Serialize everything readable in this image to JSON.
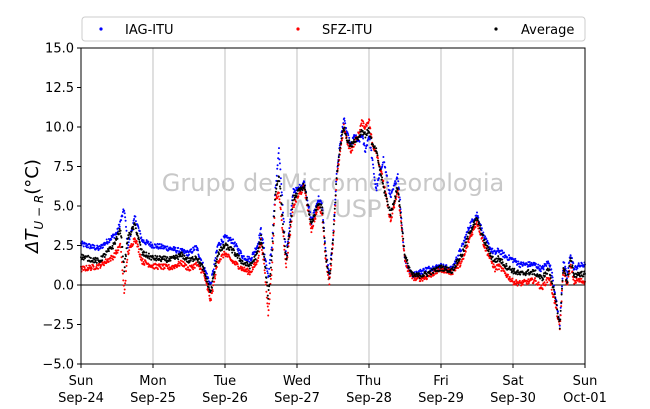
{
  "chart_data": {
    "type": "scatter",
    "title": "",
    "xlabel": "",
    "ylabel": "ΔT_{U−R}(°C)",
    "ylabel_main": "ΔT",
    "ylabel_sub": "U − R",
    "ylabel_unit": "(°C)",
    "xlim": [
      0,
      7
    ],
    "ylim": [
      -5.0,
      15.0
    ],
    "yticks": [
      -5.0,
      -2.5,
      0.0,
      2.5,
      5.0,
      7.5,
      10.0,
      12.5,
      15.0
    ],
    "ytick_labels": [
      "−5.0",
      "−2.5",
      "0.0",
      "2.5",
      "5.0",
      "7.5",
      "10.0",
      "12.5",
      "15.0"
    ],
    "xticks": [
      0,
      1,
      2,
      3,
      4,
      5,
      6,
      7
    ],
    "xtick_labels": [
      {
        "day": "Sun",
        "date": "Sep-24"
      },
      {
        "day": "Mon",
        "date": "Sep-25"
      },
      {
        "day": "Tue",
        "date": "Sep-26"
      },
      {
        "day": "Wed",
        "date": "Sep-27"
      },
      {
        "day": "Thu",
        "date": "Sep-28"
      },
      {
        "day": "Fri",
        "date": "Sep-29"
      },
      {
        "day": "Sat",
        "date": "Sep-30"
      },
      {
        "day": "Sun",
        "date": "Oct-01"
      }
    ],
    "grid": "x-only",
    "zero_line": true,
    "legend_position": "top",
    "watermark": [
      "Grupo de Micrometeorologia",
      "IAG/USP"
    ],
    "series": [
      {
        "name": "IAG-ITU",
        "color": "#0000ff",
        "x": [
          0.0,
          0.25,
          0.5,
          0.6,
          0.65,
          0.75,
          0.85,
          1.0,
          1.25,
          1.5,
          1.6,
          1.8,
          1.9,
          2.0,
          2.1,
          2.25,
          2.35,
          2.45,
          2.5,
          2.55,
          2.6,
          2.65,
          2.7,
          2.75,
          2.85,
          2.95,
          3.0,
          3.1,
          3.2,
          3.3,
          3.35,
          3.4,
          3.45,
          3.5,
          3.55,
          3.6,
          3.65,
          3.7,
          3.75,
          3.8,
          3.85,
          3.9,
          3.95,
          4.0,
          4.1,
          4.2,
          4.3,
          4.4,
          4.5,
          4.55,
          4.6,
          4.7,
          4.8,
          5.0,
          5.15,
          5.3,
          5.4,
          5.5,
          5.6,
          5.7,
          5.75,
          5.8,
          5.9,
          6.0,
          6.1,
          6.2,
          6.3,
          6.4,
          6.5,
          6.55,
          6.6,
          6.65,
          6.7,
          6.75,
          6.8,
          6.85,
          6.9,
          7.0
        ],
        "y": [
          2.6,
          2.3,
          3.3,
          4.8,
          2.5,
          4.3,
          2.8,
          2.5,
          2.3,
          2.0,
          2.4,
          0.0,
          2.5,
          3.0,
          2.8,
          1.8,
          1.6,
          2.5,
          3.5,
          2.0,
          0.5,
          2.5,
          6.0,
          8.5,
          1.8,
          6.0,
          6.0,
          6.5,
          4.0,
          5.5,
          5.0,
          2.0,
          0.6,
          3.0,
          7.0,
          9.0,
          10.5,
          9.5,
          8.8,
          9.5,
          9.0,
          9.5,
          8.5,
          9.5,
          6.0,
          8.0,
          5.5,
          7.0,
          1.5,
          1.0,
          0.6,
          0.8,
          1.0,
          1.2,
          1.0,
          2.5,
          3.8,
          4.5,
          3.0,
          2.2,
          2.0,
          2.2,
          1.8,
          1.6,
          1.3,
          1.3,
          1.3,
          1.0,
          1.5,
          0.5,
          -1.0,
          -2.5,
          1.5,
          0.5,
          2.0,
          1.0,
          1.2,
          1.3
        ]
      },
      {
        "name": "SFZ-ITU",
        "color": "#ff0000",
        "x": [
          0.0,
          0.25,
          0.45,
          0.55,
          0.6,
          0.65,
          0.75,
          0.85,
          1.0,
          1.25,
          1.4,
          1.5,
          1.6,
          1.7,
          1.8,
          1.9,
          2.0,
          2.1,
          2.25,
          2.35,
          2.45,
          2.5,
          2.55,
          2.6,
          2.65,
          2.7,
          2.75,
          2.85,
          2.95,
          3.0,
          3.1,
          3.2,
          3.3,
          3.35,
          3.4,
          3.45,
          3.5,
          3.55,
          3.6,
          3.65,
          3.7,
          3.75,
          3.8,
          3.85,
          3.9,
          3.95,
          4.0,
          4.05,
          4.1,
          4.2,
          4.3,
          4.4,
          4.5,
          4.55,
          4.6,
          4.7,
          4.8,
          5.0,
          5.15,
          5.3,
          5.4,
          5.5,
          5.6,
          5.7,
          5.75,
          5.8,
          5.9,
          6.0,
          6.1,
          6.2,
          6.3,
          6.4,
          6.5,
          6.55,
          6.6,
          6.65,
          6.7,
          6.75,
          6.8,
          6.85,
          6.9,
          7.0
        ],
        "y": [
          1.0,
          1.2,
          1.8,
          2.5,
          -0.5,
          2.0,
          3.0,
          1.5,
          1.2,
          1.1,
          1.4,
          1.0,
          1.3,
          0.8,
          -1.0,
          1.5,
          2.0,
          1.5,
          1.0,
          0.8,
          1.5,
          2.8,
          1.0,
          -1.8,
          1.0,
          5.5,
          5.8,
          1.2,
          5.0,
          5.5,
          6.2,
          3.5,
          5.0,
          4.5,
          1.5,
          0.2,
          2.5,
          6.5,
          8.5,
          10.0,
          9.0,
          8.5,
          9.0,
          9.5,
          10.3,
          10.0,
          10.5,
          8.8,
          8.5,
          6.5,
          4.0,
          6.0,
          1.5,
          0.8,
          0.5,
          0.4,
          0.5,
          1.0,
          0.8,
          1.5,
          3.0,
          4.0,
          2.5,
          1.5,
          1.0,
          1.2,
          0.7,
          0.2,
          0.1,
          0.2,
          0.3,
          -0.2,
          0.5,
          -0.5,
          -1.5,
          -2.8,
          1.0,
          0.0,
          1.2,
          0.2,
          0.3,
          0.2
        ]
      },
      {
        "name": "Average",
        "color": "#000000",
        "x": [
          0.0,
          0.25,
          0.45,
          0.55,
          0.6,
          0.65,
          0.75,
          0.85,
          1.0,
          1.25,
          1.4,
          1.5,
          1.6,
          1.7,
          1.8,
          1.9,
          2.0,
          2.1,
          2.25,
          2.35,
          2.45,
          2.5,
          2.55,
          2.6,
          2.65,
          2.7,
          2.75,
          2.85,
          2.95,
          3.0,
          3.1,
          3.2,
          3.3,
          3.35,
          3.4,
          3.45,
          3.5,
          3.55,
          3.6,
          3.65,
          3.7,
          3.75,
          3.8,
          3.85,
          3.9,
          3.95,
          4.0,
          4.05,
          4.1,
          4.2,
          4.3,
          4.4,
          4.5,
          4.6,
          4.7,
          4.8,
          5.0,
          5.15,
          5.3,
          5.4,
          5.5,
          5.6,
          5.7,
          5.75,
          5.8,
          5.9,
          6.0,
          6.1,
          6.2,
          6.3,
          6.4,
          6.5,
          6.55,
          6.6,
          6.65,
          6.7,
          6.75,
          6.8,
          6.85,
          6.9,
          7.0
        ],
        "y": [
          1.8,
          1.5,
          2.5,
          3.5,
          1.0,
          3.0,
          3.8,
          2.0,
          1.7,
          1.6,
          1.9,
          1.5,
          1.8,
          1.0,
          -0.5,
          2.0,
          2.5,
          2.2,
          1.4,
          1.2,
          2.0,
          3.0,
          1.5,
          -0.8,
          1.8,
          5.8,
          7.0,
          1.5,
          5.5,
          5.8,
          6.3,
          3.8,
          5.2,
          4.8,
          1.8,
          0.4,
          2.8,
          6.8,
          8.8,
          10.0,
          9.2,
          8.8,
          9.2,
          9.3,
          9.8,
          9.5,
          9.8,
          8.8,
          8.5,
          6.2,
          4.5,
          6.2,
          1.8,
          0.6,
          0.6,
          0.7,
          1.1,
          0.9,
          2.0,
          3.4,
          4.2,
          2.8,
          1.8,
          1.5,
          1.7,
          1.2,
          0.9,
          0.7,
          0.8,
          0.8,
          0.4,
          1.0,
          0.0,
          -1.2,
          -2.6,
          1.2,
          0.2,
          1.6,
          0.6,
          0.7,
          0.7
        ]
      }
    ]
  }
}
